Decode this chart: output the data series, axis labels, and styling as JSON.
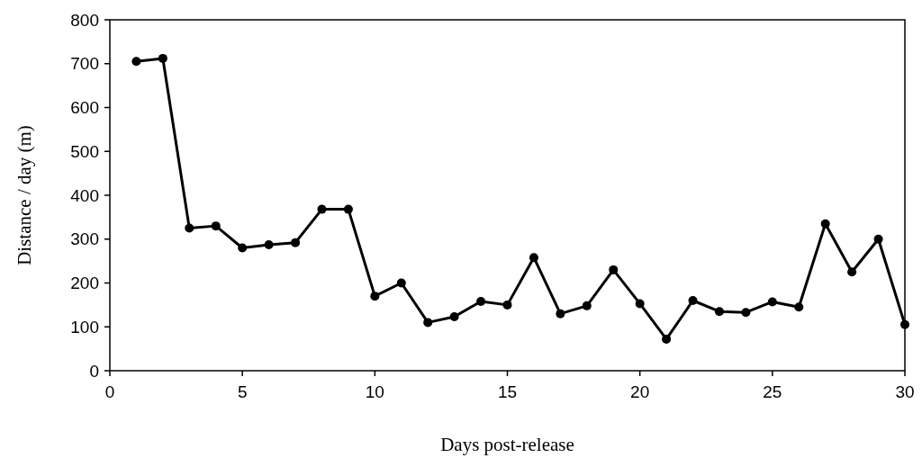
{
  "chart_data": {
    "type": "line",
    "xlabel": "Days post-release",
    "ylabel": "Distance / day (m)",
    "x": [
      1,
      2,
      3,
      4,
      5,
      6,
      7,
      8,
      9,
      10,
      11,
      12,
      13,
      14,
      15,
      16,
      17,
      18,
      19,
      20,
      21,
      22,
      23,
      24,
      25,
      26,
      27,
      28,
      29,
      30
    ],
    "series": [
      {
        "color": "#000000",
        "values": [
          705,
          712,
          325,
          330,
          280,
          287,
          292,
          368,
          368,
          170,
          200,
          110,
          123,
          158,
          150,
          258,
          130,
          148,
          230,
          153,
          72,
          160,
          135,
          133,
          157,
          145,
          335,
          225,
          300,
          105
        ]
      }
    ],
    "xlim": [
      0,
      30
    ],
    "xticks": [
      0,
      5,
      10,
      15,
      20,
      25,
      30
    ],
    "ylim": [
      0,
      800
    ],
    "yticks": [
      0,
      100,
      200,
      300,
      400,
      500,
      600,
      700,
      800
    ],
    "marker": "circle",
    "line_style": "solid",
    "grid": false
  }
}
